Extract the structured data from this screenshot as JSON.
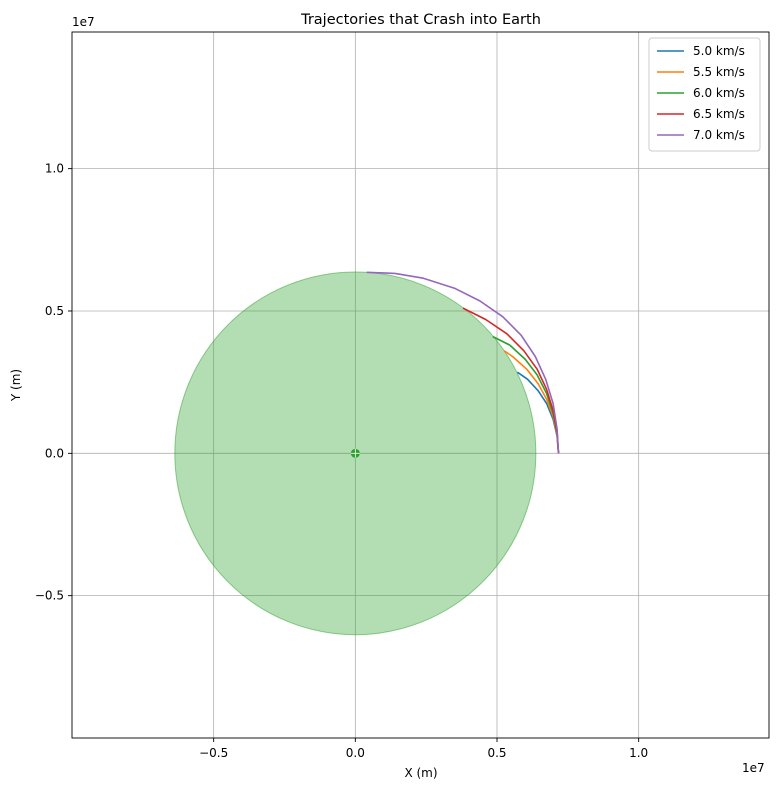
{
  "chart_data": {
    "type": "line",
    "title": "Trajectories that Crash into Earth",
    "xlabel": "X (m)",
    "ylabel": "Y (m)",
    "x_offset_label": "1e7",
    "y_offset_label": "1e7",
    "xlim": [
      -10000000.0,
      14600000.0
    ],
    "ylim": [
      -10000000.0,
      14800000.0
    ],
    "xticks": [
      -5000000.0,
      0.0,
      5000000.0,
      10000000.0
    ],
    "xtick_labels": [
      "−0.5",
      "0.0",
      "0.5",
      "1.0"
    ],
    "yticks": [
      -5000000.0,
      0.0,
      5000000.0,
      10000000.0
    ],
    "ytick_labels": [
      "−0.5",
      "0.0",
      "0.5",
      "1.0"
    ],
    "grid": true,
    "legend_position": "top-right",
    "earth": {
      "center": [
        0,
        0
      ],
      "radius": 6371000.0,
      "color": "#2ca02c",
      "alpha": 0.36
    },
    "center_marker": {
      "x": 0,
      "y": 0,
      "color": "#2ca02c"
    },
    "series": [
      {
        "name": "5.0 km/s",
        "color": "#1f77b4",
        "x": [
          7170000.0,
          7120000.0,
          6980000.0,
          6750000.0,
          6450000.0,
          6080000.0,
          5720000.0
        ],
        "y": [
          0.0,
          600000.0,
          1200000.0,
          1750000.0,
          2200000.0,
          2600000.0,
          2850000.0
        ]
      },
      {
        "name": "5.5 km/s",
        "color": "#ff7f0e",
        "x": [
          7170000.0,
          7120000.0,
          6980000.0,
          6750000.0,
          6450000.0,
          6050000.0,
          5550000.0,
          5250000.0
        ],
        "y": [
          0.0,
          650000.0,
          1300000.0,
          1900000.0,
          2450000.0,
          2950000.0,
          3400000.0,
          3600000.0
        ]
      },
      {
        "name": "6.0 km/s",
        "color": "#2ca02c",
        "x": [
          7170000.0,
          7120000.0,
          6980000.0,
          6750000.0,
          6420000.0,
          6000000.0,
          5450000.0,
          4850000.0
        ],
        "y": [
          0.0,
          700000.0,
          1400000.0,
          2100000.0,
          2750000.0,
          3300000.0,
          3800000.0,
          4100000.0
        ]
      },
      {
        "name": "6.5 km/s",
        "color": "#d62728",
        "x": [
          7170000.0,
          7120000.0,
          6980000.0,
          6750000.0,
          6420000.0,
          5950000.0,
          5350000.0,
          4600000.0,
          3800000.0
        ],
        "y": [
          0.0,
          750000.0,
          1500000.0,
          2250000.0,
          2950000.0,
          3600000.0,
          4200000.0,
          4700000.0,
          5100000.0
        ]
      },
      {
        "name": "7.0 km/s",
        "color": "#9467bd",
        "x": [
          7170000.0,
          7120000.0,
          6980000.0,
          6720000.0,
          6350000.0,
          5850000.0,
          5200000.0,
          4400000.0,
          3500000.0,
          2400000.0,
          1400000.0,
          400000.0
        ],
        "y": [
          0.0,
          850000.0,
          1750000.0,
          2600000.0,
          3400000.0,
          4150000.0,
          4800000.0,
          5350000.0,
          5800000.0,
          6150000.0,
          6320000.0,
          6360000.0
        ]
      }
    ]
  }
}
